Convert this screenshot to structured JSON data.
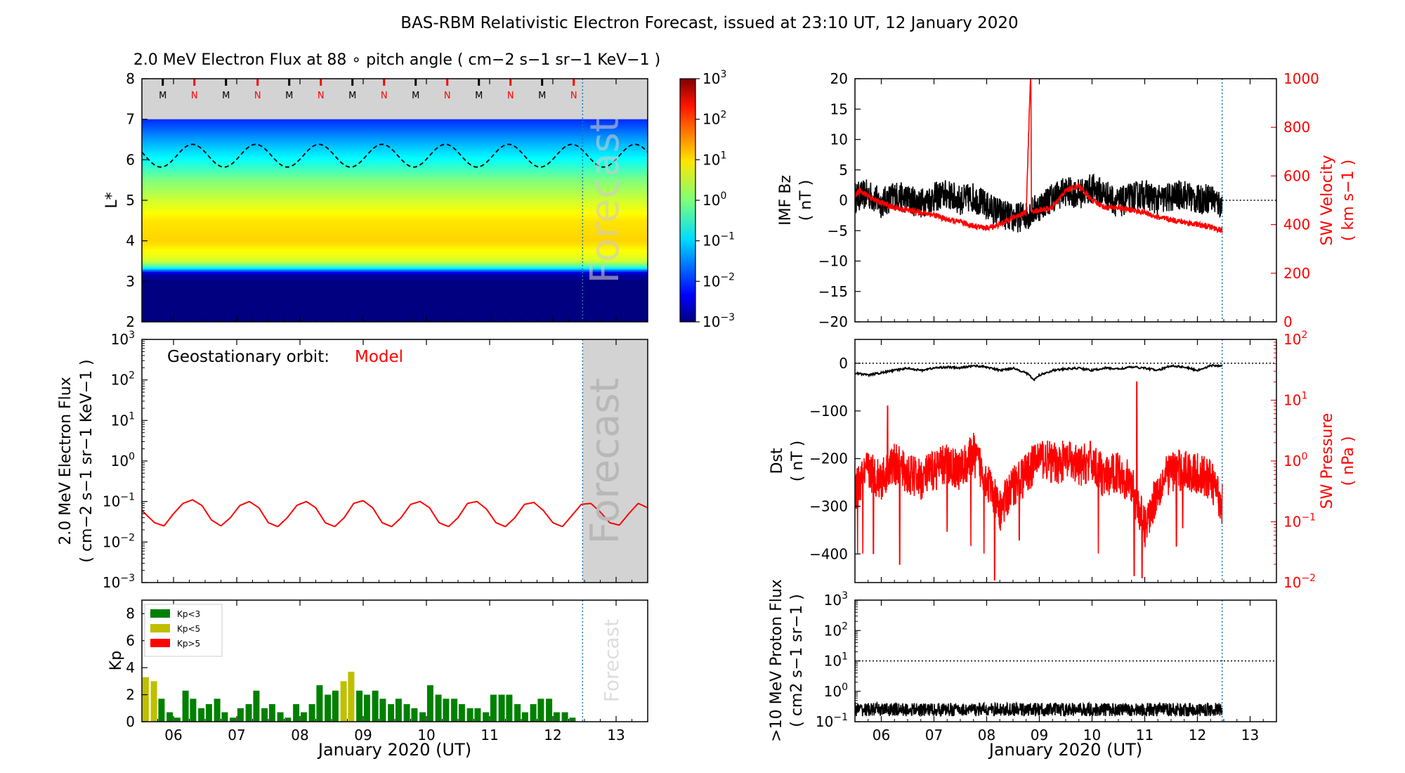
{
  "title": "BAS-RBM Relativistic Electron Forecast, issued at 23:10 UT, 12 January 2020",
  "colors": {
    "black": "#000000",
    "red": "#ff0000",
    "kp_green": "#008000",
    "kp_yellow": "#bfbf00",
    "kp_red": "#ff0000",
    "forecast_shade": "#d3d3d3",
    "nowline": "#1f77b4"
  },
  "x_axis": {
    "label": "January 2020 (UT)",
    "ticks": [
      "06",
      "07",
      "08",
      "09",
      "10",
      "11",
      "12",
      "13"
    ],
    "range_days": [
      5.5,
      13.5
    ],
    "now_day": 12.47
  },
  "forecast_label": "Forecast",
  "chart_data": [
    {
      "id": "lstar_flux",
      "type": "heatmap",
      "title": "2.0 MeV Electron Flux at 88$^\\circ$ pitch angle ( cm$^{-2}$ s$^{-1}$ sr$^{-1}$ KeV$^{-1}$ )",
      "title_text": "2.0 MeV Electron Flux at 88 ∘ pitch angle ( cm−2 s−1 sr−1 KeV−1 )",
      "ylabel": "L*",
      "ylim": [
        2,
        8
      ],
      "yticks": [
        "2",
        "3",
        "4",
        "5",
        "6",
        "7",
        "8"
      ],
      "colorbar": {
        "scale": "log",
        "range": [
          0.001,
          1000
        ],
        "ticks": [
          "10−3",
          "10−2",
          "10−1",
          "100",
          "101",
          "102",
          "103"
        ]
      },
      "profile": [
        {
          "L": 2.0,
          "flux": 0.001
        },
        {
          "L": 3.0,
          "flux": 0.001
        },
        {
          "L": 3.2,
          "flux": 0.002
        },
        {
          "L": 3.35,
          "flux": 0.3
        },
        {
          "L": 3.5,
          "flux": 3
        },
        {
          "L": 4.0,
          "flux": 10
        },
        {
          "L": 4.5,
          "flux": 8
        },
        {
          "L": 5.0,
          "flux": 3
        },
        {
          "L": 5.5,
          "flux": 1
        },
        {
          "L": 6.0,
          "flux": 0.2
        },
        {
          "L": 6.5,
          "flux": 0.05
        },
        {
          "L": 7.0,
          "flux": 0.01
        }
      ],
      "geo_lstar_curve": {
        "mean": 6.1,
        "amplitude": 0.28,
        "period_days": 1.0,
        "phase_day": 6.3
      },
      "mlt_markers": [
        "M",
        "N",
        "M",
        "N",
        "M",
        "N",
        "M",
        "N",
        "M",
        "N",
        "M",
        "N",
        "M",
        "N"
      ],
      "mlt_marker_days": [
        5.83,
        6.33,
        6.83,
        7.33,
        7.83,
        8.33,
        8.83,
        9.33,
        9.83,
        10.33,
        10.83,
        11.33,
        11.83,
        12.33
      ]
    },
    {
      "id": "geo_flux",
      "type": "line",
      "ylabel": "2.0 MeV Electron Flux ( cm−2 s−1 sr−1 KeV−1 )",
      "ylabel_line1": "2.0 MeV Electron Flux",
      "ylabel_line2": "( cm−2 s−1 sr−1 KeV−1 )",
      "yscale": "log",
      "ylim": [
        0.001,
        1000
      ],
      "yticks": [
        "10−3",
        "10−2",
        "10−1",
        "100",
        "101",
        "102",
        "103"
      ],
      "annotation_left": "Geostationary orbit:",
      "annotation_right": "Model",
      "series": [
        {
          "name": "Model",
          "color": "#ff0000",
          "x": [
            5.5,
            5.7,
            5.85,
            6.0,
            6.15,
            6.3,
            6.45,
            6.6,
            6.75,
            6.9,
            7.05,
            7.2,
            7.35,
            7.5,
            7.65,
            7.8,
            7.95,
            8.1,
            8.25,
            8.4,
            8.55,
            8.7,
            8.85,
            9.0,
            9.15,
            9.3,
            9.45,
            9.6,
            9.75,
            9.9,
            10.05,
            10.2,
            10.35,
            10.5,
            10.65,
            10.8,
            10.95,
            11.1,
            11.25,
            11.4,
            11.55,
            11.7,
            11.85,
            12.0,
            12.15,
            12.3,
            12.45,
            12.6,
            12.75,
            12.9,
            13.05,
            13.2,
            13.35,
            13.5
          ],
          "y": [
            0.06,
            0.03,
            0.025,
            0.05,
            0.09,
            0.11,
            0.08,
            0.035,
            0.025,
            0.04,
            0.08,
            0.1,
            0.07,
            0.03,
            0.024,
            0.04,
            0.08,
            0.1,
            0.07,
            0.03,
            0.024,
            0.04,
            0.09,
            0.105,
            0.07,
            0.03,
            0.024,
            0.04,
            0.085,
            0.1,
            0.07,
            0.03,
            0.024,
            0.04,
            0.09,
            0.1,
            0.065,
            0.03,
            0.024,
            0.04,
            0.085,
            0.095,
            0.06,
            0.03,
            0.024,
            0.045,
            0.085,
            0.09,
            0.055,
            0.03,
            0.026,
            0.05,
            0.09,
            0.07
          ]
        }
      ]
    },
    {
      "id": "kp",
      "type": "bar",
      "ylabel": "Kp",
      "ylim": [
        0,
        9
      ],
      "yticks": [
        "0",
        "2",
        "4",
        "6",
        "8"
      ],
      "legend": [
        "Kp<3",
        "Kp<5",
        "Kp>5"
      ],
      "bar_width_days": 0.1,
      "x": [
        5.56,
        5.69,
        5.81,
        5.94,
        6.06,
        6.19,
        6.31,
        6.44,
        6.56,
        6.69,
        6.81,
        6.94,
        7.06,
        7.19,
        7.31,
        7.44,
        7.56,
        7.69,
        7.81,
        7.94,
        8.06,
        8.19,
        8.31,
        8.44,
        8.56,
        8.69,
        8.81,
        8.94,
        9.06,
        9.19,
        9.31,
        9.44,
        9.56,
        9.69,
        9.81,
        9.94,
        10.06,
        10.19,
        10.31,
        10.44,
        10.56,
        10.69,
        10.81,
        10.94,
        11.06,
        11.19,
        11.31,
        11.44,
        11.56,
        11.69,
        11.81,
        11.94,
        12.06,
        12.19,
        12.31
      ],
      "values": [
        3.3,
        3.0,
        1.7,
        0.7,
        0.3,
        2.3,
        1.7,
        1.0,
        1.3,
        1.7,
        0.7,
        0.3,
        1.0,
        1.3,
        2.3,
        1.0,
        1.3,
        0.7,
        0.3,
        1.3,
        0.7,
        1.3,
        2.7,
        2.0,
        2.3,
        3.0,
        3.7,
        2.3,
        2.0,
        2.3,
        1.7,
        1.3,
        1.7,
        1.3,
        1.0,
        0.7,
        2.7,
        2.0,
        1.7,
        1.7,
        1.3,
        1.0,
        1.0,
        0.7,
        2.0,
        2.0,
        2.0,
        1.3,
        0.7,
        1.3,
        1.7,
        1.7,
        0.7,
        0.7,
        0.3
      ]
    },
    {
      "id": "imf_bz",
      "type": "line",
      "ylabel": "IMF Bz ( nT )",
      "ylabel_line1": "IMF Bz",
      "ylabel_line2": "( nT )",
      "ylim": [
        -20,
        20
      ],
      "yticks": [
        "−20",
        "−15",
        "−10",
        "−5",
        "0",
        "5",
        "10",
        "15",
        "20"
      ],
      "ylabel_right": "SW Velocity ( km s−1 )",
      "ylabel_right_line1": "SW Velocity",
      "ylabel_right_line2": "( km s−1 )",
      "ylim_right": [
        0,
        1000
      ],
      "yticks_right": [
        "0",
        "200",
        "400",
        "600",
        "800",
        "1000"
      ],
      "series": [
        {
          "name": "IMF Bz",
          "axis": "left",
          "color": "#000000",
          "x": [
            5.5,
            5.75,
            6.0,
            6.25,
            6.5,
            6.75,
            7.0,
            7.25,
            7.5,
            7.75,
            8.0,
            8.25,
            8.5,
            8.75,
            9.0,
            9.25,
            9.5,
            9.75,
            10.0,
            10.25,
            10.5,
            10.75,
            11.0,
            11.25,
            11.5,
            11.75,
            12.0,
            12.25,
            12.47
          ],
          "y": [
            0.5,
            1.0,
            -0.5,
            0.8,
            0.2,
            -0.5,
            0.5,
            1.0,
            0.0,
            0.5,
            -1.0,
            -2.0,
            -3.0,
            -2.5,
            -1.0,
            0.5,
            1.5,
            1.0,
            2.0,
            1.0,
            -0.5,
            0.5,
            1.0,
            0.0,
            0.5,
            1.0,
            0.0,
            0.5,
            -1.0
          ],
          "noise_amplitude": 2.5
        },
        {
          "name": "SW Velocity",
          "axis": "right",
          "color": "#ff0000",
          "x": [
            5.5,
            5.6,
            5.8,
            6.0,
            6.25,
            6.5,
            6.75,
            7.0,
            7.25,
            7.5,
            7.75,
            8.0,
            8.25,
            8.5,
            8.75,
            8.83,
            8.84,
            8.85,
            9.0,
            9.25,
            9.5,
            9.75,
            10.0,
            10.25,
            10.5,
            10.75,
            11.0,
            11.25,
            11.5,
            11.75,
            12.0,
            12.25,
            12.47
          ],
          "y": [
            520,
            540,
            510,
            490,
            470,
            460,
            450,
            440,
            420,
            410,
            395,
            385,
            400,
            430,
            450,
            1000,
            1000,
            450,
            460,
            470,
            540,
            560,
            500,
            470,
            470,
            460,
            450,
            430,
            420,
            410,
            400,
            390,
            375
          ],
          "noise_amplitude": 12
        }
      ],
      "reference_line_y": 0
    },
    {
      "id": "dst",
      "type": "line",
      "ylabel": "Dst ( nT )",
      "ylabel_line1": "Dst",
      "ylabel_line2": "( nT )",
      "ylim": [
        -460,
        50
      ],
      "yticks": [
        "−400",
        "−300",
        "−200",
        "−100",
        "0"
      ],
      "ylabel_right": "SW Pressure ( nPa )",
      "ylabel_right_line1": "SW Pressure",
      "ylabel_right_line2": "( nPa )",
      "yscale_right": "log",
      "ylim_right": [
        0.01,
        100
      ],
      "yticks_right": [
        "10−2",
        "10−1",
        "100",
        "101",
        "102"
      ],
      "series": [
        {
          "name": "Dst",
          "axis": "left",
          "color": "#000000",
          "x": [
            5.5,
            5.75,
            6.0,
            6.25,
            6.5,
            6.75,
            7.0,
            7.25,
            7.5,
            7.75,
            8.0,
            8.25,
            8.5,
            8.75,
            8.9,
            9.0,
            9.25,
            9.5,
            9.75,
            10.0,
            10.25,
            10.5,
            10.75,
            11.0,
            11.25,
            11.5,
            11.75,
            12.0,
            12.25,
            12.47
          ],
          "y": [
            -20,
            -25,
            -20,
            -15,
            -10,
            -15,
            -10,
            -8,
            -10,
            -5,
            -8,
            -15,
            -10,
            -20,
            -35,
            -25,
            -15,
            -12,
            -10,
            -15,
            -10,
            -12,
            -8,
            -10,
            -15,
            -5,
            -8,
            -15,
            -5,
            -5
          ]
        },
        {
          "name": "SW Pressure",
          "axis": "right",
          "color": "#ff0000",
          "x": [
            5.5,
            5.75,
            6.0,
            6.25,
            6.5,
            6.75,
            7.0,
            7.25,
            7.5,
            7.75,
            8.0,
            8.25,
            8.5,
            8.75,
            9.0,
            9.25,
            9.5,
            9.75,
            10.0,
            10.25,
            10.5,
            10.75,
            11.0,
            11.25,
            11.5,
            11.75,
            12.0,
            12.25,
            12.47
          ],
          "y": [
            0.3,
            0.7,
            0.5,
            0.9,
            0.6,
            0.5,
            0.7,
            0.9,
            0.7,
            1.3,
            0.5,
            0.15,
            0.4,
            0.6,
            1.2,
            0.9,
            1.0,
            0.8,
            1.0,
            0.5,
            0.7,
            0.4,
            0.08,
            0.35,
            0.7,
            0.7,
            0.6,
            0.5,
            0.2
          ],
          "noise_log_amplitude": 0.35,
          "spikes": [
            {
              "x": 5.55,
              "y": 0.03
            },
            {
              "x": 5.65,
              "y": 0.03
            },
            {
              "x": 5.85,
              "y": 0.03
            },
            {
              "x": 6.12,
              "y": 8
            },
            {
              "x": 6.35,
              "y": 0.02
            },
            {
              "x": 7.25,
              "y": 0.07
            },
            {
              "x": 7.7,
              "y": 0.04
            },
            {
              "x": 7.95,
              "y": 0.03
            },
            {
              "x": 8.15,
              "y": 0.011
            },
            {
              "x": 8.62,
              "y": 0.05
            },
            {
              "x": 10.12,
              "y": 0.03
            },
            {
              "x": 10.85,
              "y": 20
            },
            {
              "x": 10.95,
              "y": 0.012
            },
            {
              "x": 10.8,
              "y": 0.013
            },
            {
              "x": 11.6,
              "y": 0.04
            },
            {
              "x": 11.72,
              "y": 0.08
            }
          ]
        }
      ],
      "reference_line_y": 0
    },
    {
      "id": "proton_flux",
      "type": "line",
      "ylabel": ">10 MeV Proton Flux ( cm2 s−1 sr−1 )",
      "ylabel_line1": ">10 MeV Proton Flux",
      "ylabel_line2": "( cm2 s−1 sr−1 )",
      "yscale": "log",
      "ylim": [
        0.1,
        1000
      ],
      "yticks": [
        "10−1",
        "100",
        "101",
        "102",
        "103"
      ],
      "series": [
        {
          "name": ">10 MeV Proton Flux",
          "color": "#000000",
          "x": [
            5.5,
            12.47
          ],
          "y": [
            0.25,
            0.25
          ],
          "noise_log_amplitude": 0.22
        }
      ],
      "reference_line_y": 10
    }
  ]
}
